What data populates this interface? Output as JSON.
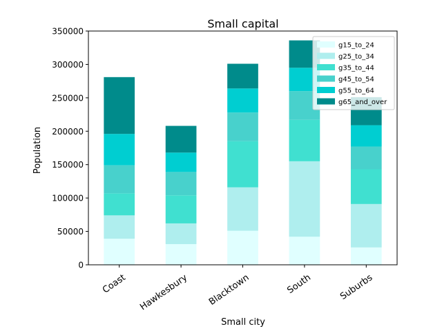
{
  "chart_data": {
    "type": "bar",
    "stacked": true,
    "title": "Small capital",
    "xlabel": "Small city",
    "ylabel": "Population",
    "ylim": [
      0,
      350000
    ],
    "yticks": [
      0,
      50000,
      100000,
      150000,
      200000,
      250000,
      300000,
      350000
    ],
    "ytick_labels": [
      "0",
      "50000",
      "100000",
      "150000",
      "200000",
      "250000",
      "300000",
      "350000"
    ],
    "categories": [
      "Coast",
      "Hawkesbury",
      "Blacktown",
      "South",
      "Suburbs"
    ],
    "legend_position": "top-right",
    "grid": false,
    "series": [
      {
        "name": "g15_to_24",
        "color": "#e0ffff",
        "values": [
          39000,
          31000,
          51000,
          42000,
          26000
        ]
      },
      {
        "name": "g25_to_34",
        "color": "#afeeee",
        "values": [
          35000,
          31000,
          65000,
          113000,
          65000
        ]
      },
      {
        "name": "g35_to_44",
        "color": "#40e0d0",
        "values": [
          33000,
          42000,
          69000,
          62000,
          52000
        ]
      },
      {
        "name": "g45_to_54",
        "color": "#48d1cc",
        "values": [
          42000,
          35000,
          43000,
          43000,
          34000
        ]
      },
      {
        "name": "g55_to_64",
        "color": "#00ced1",
        "values": [
          47000,
          29000,
          36000,
          35000,
          32000
        ]
      },
      {
        "name": "g65_and_over",
        "color": "#008b8b",
        "values": [
          85000,
          40000,
          37000,
          41000,
          42000
        ]
      }
    ]
  }
}
